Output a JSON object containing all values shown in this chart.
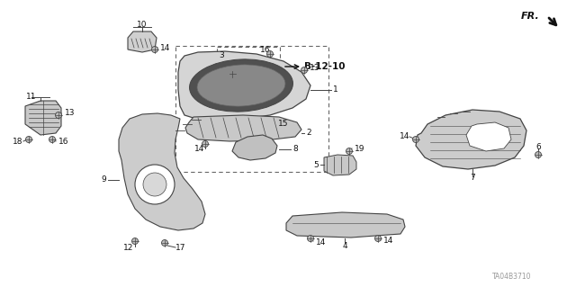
{
  "bg_color": "#ffffff",
  "line_color": "#444444",
  "text_color": "#111111",
  "diagram_id": "TA04B3710",
  "fr_text": "FR.",
  "ref_text": "B-12-10",
  "font_size": 6.5
}
